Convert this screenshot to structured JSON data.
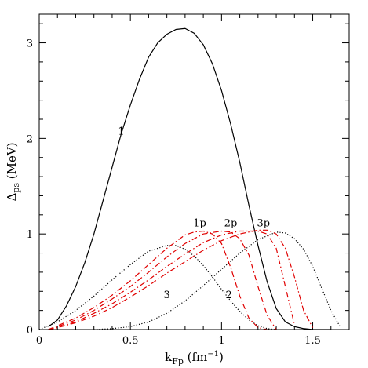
{
  "chart_data": {
    "type": "line",
    "xlabel": {
      "main": "k",
      "sub": "Fp",
      "unit": " (fm",
      "sup": "−1",
      "close": ")"
    },
    "ylabel": {
      "main": "Δ",
      "sub": "ps",
      "unit": " (MeV)"
    },
    "xlim": [
      0,
      1.7
    ],
    "ylim": [
      0,
      3.3
    ],
    "x_ticks": [
      0,
      0.5,
      1,
      1.5
    ],
    "x_tick_labels": [
      "0",
      "0.5",
      "1",
      "1.5"
    ],
    "y_ticks": [
      0,
      1,
      2,
      3
    ],
    "y_tick_labels": [
      "0",
      "1",
      "2",
      "3"
    ],
    "grid": false,
    "series": [
      {
        "name": "1",
        "color": "#000000",
        "style": "solid",
        "x": [
          0.05,
          0.1,
          0.15,
          0.2,
          0.25,
          0.3,
          0.35,
          0.4,
          0.45,
          0.5,
          0.55,
          0.6,
          0.65,
          0.7,
          0.75,
          0.8,
          0.85,
          0.9,
          0.95,
          1.0,
          1.05,
          1.1,
          1.15,
          1.2,
          1.25,
          1.3,
          1.35,
          1.4,
          1.45,
          1.5,
          1.55,
          1.6
        ],
        "y": [
          0.03,
          0.1,
          0.25,
          0.45,
          0.7,
          1.0,
          1.35,
          1.7,
          2.05,
          2.35,
          2.62,
          2.85,
          3.0,
          3.09,
          3.14,
          3.15,
          3.1,
          2.98,
          2.78,
          2.5,
          2.15,
          1.75,
          1.3,
          0.88,
          0.5,
          0.22,
          0.08,
          0.03,
          0.01,
          0.0,
          0.0,
          0.0
        ]
      },
      {
        "name": "2",
        "color": "#000000",
        "style": "dotted",
        "x": [
          0.0,
          0.1,
          0.2,
          0.3,
          0.4,
          0.5,
          0.6,
          0.7,
          0.75,
          0.8,
          0.85,
          0.9,
          0.95,
          1.0,
          1.05,
          1.1,
          1.15,
          1.2,
          1.25,
          1.3
        ],
        "y": [
          0.0,
          0.08,
          0.2,
          0.35,
          0.52,
          0.68,
          0.82,
          0.88,
          0.88,
          0.84,
          0.77,
          0.67,
          0.55,
          0.42,
          0.3,
          0.19,
          0.1,
          0.04,
          0.01,
          0.0
        ]
      },
      {
        "name": "3",
        "color": "#000000",
        "style": "dotted",
        "x": [
          0.3,
          0.4,
          0.5,
          0.6,
          0.7,
          0.8,
          0.9,
          1.0,
          1.1,
          1.2,
          1.3,
          1.35,
          1.4,
          1.45,
          1.5,
          1.55,
          1.6,
          1.65
        ],
        "y": [
          0.0,
          0.01,
          0.03,
          0.08,
          0.17,
          0.3,
          0.46,
          0.63,
          0.8,
          0.94,
          1.02,
          1.01,
          0.95,
          0.84,
          0.66,
          0.43,
          0.2,
          0.03
        ]
      },
      {
        "name": "1p",
        "color": "#e00000",
        "style": "dashdot",
        "x": [
          0.05,
          0.1,
          0.2,
          0.3,
          0.4,
          0.5,
          0.6,
          0.7,
          0.8,
          0.85,
          0.9,
          0.95,
          1.0,
          1.05,
          1.1,
          1.15,
          1.2,
          1.25
        ],
        "y": [
          0.0,
          0.04,
          0.12,
          0.23,
          0.36,
          0.51,
          0.68,
          0.85,
          0.99,
          1.02,
          1.03,
          1.0,
          0.9,
          0.65,
          0.35,
          0.12,
          0.02,
          0.0
        ]
      },
      {
        "name": "2p",
        "color": "#e00000",
        "style": "dashdot",
        "x": [
          0.05,
          0.1,
          0.2,
          0.3,
          0.4,
          0.5,
          0.6,
          0.7,
          0.8,
          0.9,
          1.0,
          1.05,
          1.1,
          1.15,
          1.2,
          1.25,
          1.3
        ],
        "y": [
          0.0,
          0.03,
          0.1,
          0.2,
          0.32,
          0.45,
          0.6,
          0.76,
          0.9,
          1.0,
          1.03,
          1.02,
          0.95,
          0.78,
          0.45,
          0.15,
          0.0
        ]
      },
      {
        "name": "3p",
        "color": "#e00000",
        "style": "dashdot",
        "x": [
          0.05,
          0.1,
          0.2,
          0.3,
          0.4,
          0.5,
          0.6,
          0.7,
          0.8,
          0.9,
          1.0,
          1.1,
          1.2,
          1.25,
          1.3,
          1.35,
          1.4
        ],
        "y": [
          0.0,
          0.02,
          0.08,
          0.17,
          0.27,
          0.39,
          0.52,
          0.66,
          0.79,
          0.91,
          0.99,
          1.03,
          1.03,
          1.0,
          0.85,
          0.45,
          0.05
        ]
      },
      {
        "name": "",
        "color": "#e00000",
        "style": "dashdot",
        "x": [
          0.05,
          0.1,
          0.2,
          0.3,
          0.4,
          0.5,
          0.6,
          0.7,
          0.8,
          0.9,
          1.0,
          1.1,
          1.2,
          1.25,
          1.3,
          1.35,
          1.4,
          1.45,
          1.5
        ],
        "y": [
          0.0,
          0.02,
          0.07,
          0.14,
          0.23,
          0.34,
          0.46,
          0.59,
          0.71,
          0.83,
          0.93,
          1.0,
          1.04,
          1.04,
          1.0,
          0.85,
          0.55,
          0.2,
          0.02
        ]
      }
    ],
    "annotations": [
      {
        "text": "1",
        "x": 0.45,
        "y": 2.04
      },
      {
        "text": "2",
        "x": 1.04,
        "y": 0.33
      },
      {
        "text": "3",
        "x": 0.7,
        "y": 0.33
      },
      {
        "text": "1p",
        "x": 0.88,
        "y": 1.08
      },
      {
        "text": "2p",
        "x": 1.05,
        "y": 1.08
      },
      {
        "text": "3p",
        "x": 1.23,
        "y": 1.08
      }
    ]
  }
}
